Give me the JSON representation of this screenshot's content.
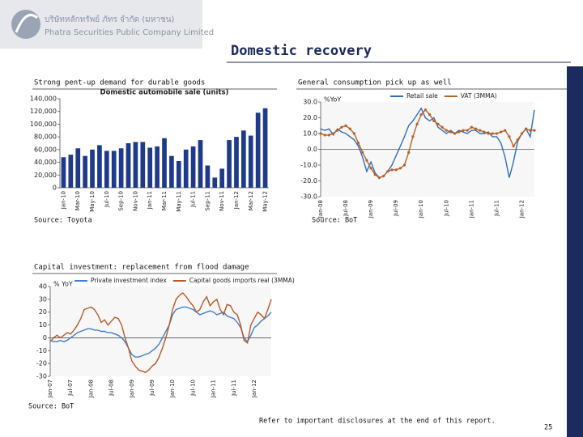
{
  "header": {
    "company_local": "บริษัทหลักทรัพย์ ภัทร จำกัด (มหาชน)",
    "company": "Phatra Securities Public Company Limited",
    "title": "Domestic recovery"
  },
  "sections": [
    {
      "heading": "Strong pent-up demand for durable goods",
      "source": "Source: Toyota"
    },
    {
      "heading": "General consumption pick up as well",
      "source": "Source: BoT"
    },
    {
      "heading": "Capital investment: replacement from flood damage",
      "source": "Source: BoT"
    }
  ],
  "footer": {
    "disclaimer": "Refer to important disclosures at the end of this report.",
    "page": "25"
  },
  "chart_data": [
    {
      "type": "bar",
      "title": "Domestic automobile sale (units)",
      "categories": [
        "Jan-10",
        null,
        "Mar-10",
        null,
        "May-10",
        null,
        "Jul-10",
        null,
        "Sep-10",
        null,
        "Nov-10",
        null,
        "Jan-11",
        null,
        "Mar-11",
        null,
        "May-11",
        null,
        "Jul-11",
        null,
        "Sep-11",
        null,
        "Nov-11",
        null,
        "Jan-12",
        null,
        "Mar-12",
        null,
        "May-12"
      ],
      "values": [
        48000,
        52000,
        62000,
        50000,
        60000,
        67000,
        58000,
        58000,
        62000,
        70000,
        72000,
        72000,
        63000,
        65000,
        78000,
        50000,
        42000,
        60000,
        65000,
        75000,
        35000,
        16000,
        30000,
        75000,
        80000,
        90000,
        82000,
        118000,
        125000
      ],
      "color": "#1f3a8a",
      "ylim": [
        0,
        140000
      ],
      "yticks": [
        0,
        {
          "value": 20000,
          "label": "20,000"
        },
        {
          "value": 40000,
          "label": "40,000"
        },
        {
          "value": 60000,
          "label": "60,000"
        },
        {
          "value": 80000,
          "label": "80,000"
        },
        {
          "value": 100000,
          "label": "100,000"
        },
        {
          "value": 120000,
          "label": "120,000"
        },
        {
          "value": 140000,
          "label": "140,000"
        }
      ]
    },
    {
      "type": "line",
      "y_label": "%YoY",
      "categories": [
        "Jan-08",
        null,
        null,
        null,
        null,
        null,
        "Jul-08",
        null,
        null,
        null,
        null,
        null,
        "Jan-09",
        null,
        null,
        null,
        null,
        null,
        "Jul-09",
        null,
        null,
        null,
        null,
        null,
        "Jan-10",
        null,
        null,
        null,
        null,
        null,
        "Jul-10",
        null,
        null,
        null,
        null,
        null,
        "Jan-11",
        null,
        null,
        null,
        null,
        null,
        "Jul-11",
        null,
        null,
        null,
        null,
        null,
        "Jan-12",
        null,
        null,
        null
      ],
      "series": [
        {
          "name": "Retail sale",
          "color": "#2e6fb7",
          "values": [
            13,
            12,
            13,
            9,
            13,
            11,
            10,
            8,
            6,
            2,
            -5,
            -14,
            -8,
            -15,
            -18,
            -17,
            -14,
            -10,
            -4,
            2,
            8,
            15,
            18,
            22,
            26,
            20,
            18,
            20,
            14,
            12,
            10,
            12,
            10,
            12,
            11,
            10,
            12,
            12,
            10,
            10,
            11,
            8,
            8,
            4,
            -5,
            -18,
            -8,
            5,
            10,
            13,
            8,
            25
          ]
        },
        {
          "name": "VAT (3MMA)",
          "color": "#b8602a",
          "markers": true,
          "values": [
            10,
            9,
            9,
            10,
            12,
            14,
            15,
            13,
            10,
            4,
            -2,
            -7,
            -12,
            -16,
            -18,
            -17,
            -14,
            -13,
            -13,
            -12,
            -10,
            -2,
            8,
            16,
            22,
            25,
            22,
            18,
            16,
            14,
            12,
            11,
            10,
            11,
            12,
            12,
            14,
            13,
            12,
            11,
            10,
            10,
            10,
            11,
            12,
            8,
            2,
            6,
            10,
            13,
            12,
            12
          ]
        }
      ],
      "ylim": [
        -30,
        30
      ],
      "yticks": [
        {
          "value": 30,
          "label": "30.0"
        },
        {
          "value": 20,
          "label": "20.0"
        },
        {
          "value": 10,
          "label": "10.0"
        },
        {
          "value": 0,
          "label": "0.0"
        },
        {
          "value": -10,
          "label": "-10.0"
        },
        {
          "value": -20,
          "label": "-20.0"
        },
        {
          "value": -30,
          "label": "-30.0"
        }
      ]
    },
    {
      "type": "line",
      "y_label": "% YoY",
      "categories": [
        "Jan-07",
        null,
        null,
        null,
        null,
        null,
        "Jul-07",
        null,
        null,
        null,
        null,
        null,
        "Jan-08",
        null,
        null,
        null,
        null,
        null,
        "Jul-08",
        null,
        null,
        null,
        null,
        null,
        "Jan-09",
        null,
        null,
        null,
        null,
        null,
        "Jul-09",
        null,
        null,
        null,
        null,
        null,
        "Jan-10",
        null,
        null,
        null,
        null,
        null,
        "Jul-10",
        null,
        null,
        null,
        null,
        null,
        "Jan-11",
        null,
        null,
        null,
        null,
        null,
        "Jul-11",
        null,
        null,
        null,
        null,
        null,
        "Jan-12",
        null,
        null,
        null,
        null,
        null
      ],
      "series": [
        {
          "name": "Private investment index",
          "color": "#3f7fd0",
          "values": [
            -2,
            -3,
            -3,
            -2,
            -3,
            -2,
            0,
            2,
            4,
            5,
            6,
            7,
            7,
            6,
            6,
            5,
            5,
            4,
            4,
            3,
            2,
            0,
            -3,
            -8,
            -13,
            -15,
            -15,
            -14,
            -13,
            -12,
            -10,
            -8,
            -5,
            0,
            5,
            10,
            18,
            22,
            23,
            24,
            24,
            23,
            22,
            20,
            18,
            19,
            20,
            21,
            20,
            18,
            19,
            20,
            17,
            16,
            15,
            12,
            8,
            0,
            -3,
            2,
            8,
            10,
            13,
            15,
            17,
            20
          ]
        },
        {
          "name": "Capital goods imports real (3MMA)",
          "color": "#b85a28",
          "values": [
            -3,
            0,
            2,
            0,
            2,
            4,
            3,
            6,
            10,
            15,
            22,
            23,
            24,
            22,
            18,
            12,
            14,
            10,
            13,
            16,
            15,
            10,
            0,
            -8,
            -18,
            -22,
            -25,
            -26,
            -27,
            -25,
            -22,
            -20,
            -15,
            -8,
            0,
            10,
            22,
            30,
            33,
            35,
            32,
            28,
            25,
            20,
            22,
            28,
            32,
            25,
            28,
            30,
            22,
            18,
            26,
            25,
            20,
            18,
            10,
            -2,
            -4,
            10,
            15,
            20,
            18,
            15,
            22,
            30
          ]
        }
      ],
      "ylim": [
        -30,
        40
      ],
      "yticks": [
        40,
        30,
        20,
        10,
        0,
        -10,
        -20,
        -30
      ]
    }
  ]
}
